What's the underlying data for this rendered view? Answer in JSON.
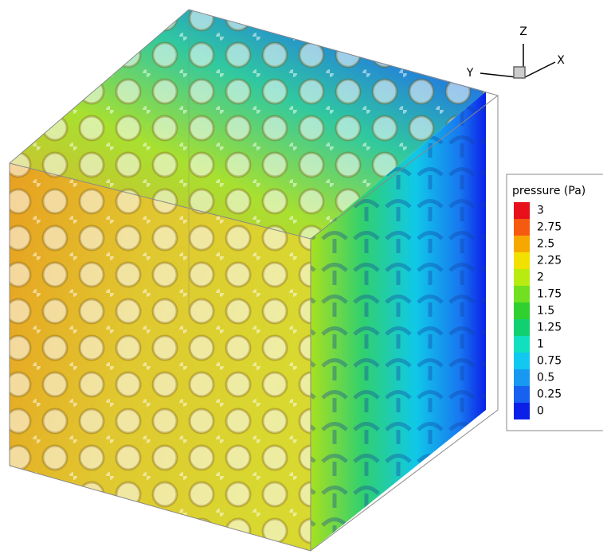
{
  "legend": {
    "title": "pressure (Pa)",
    "levels": [
      {
        "value": 3,
        "color": "#e8101a"
      },
      {
        "value": 2.75,
        "color": "#f55a10"
      },
      {
        "value": 2.5,
        "color": "#f7a800"
      },
      {
        "value": 2.25,
        "color": "#f2e000"
      },
      {
        "value": 2,
        "color": "#b8ec10"
      },
      {
        "value": 1.75,
        "color": "#70e020"
      },
      {
        "value": 1.5,
        "color": "#30d030"
      },
      {
        "value": 1.25,
        "color": "#10d070"
      },
      {
        "value": 1,
        "color": "#10e0c0"
      },
      {
        "value": 0.75,
        "color": "#10c8f0"
      },
      {
        "value": 0.5,
        "color": "#1898f0"
      },
      {
        "value": 0.25,
        "color": "#1860f0"
      },
      {
        "value": 0,
        "color": "#0a20e8"
      }
    ]
  },
  "axes": {
    "z": "Z",
    "y": "Y",
    "x": "X"
  }
}
